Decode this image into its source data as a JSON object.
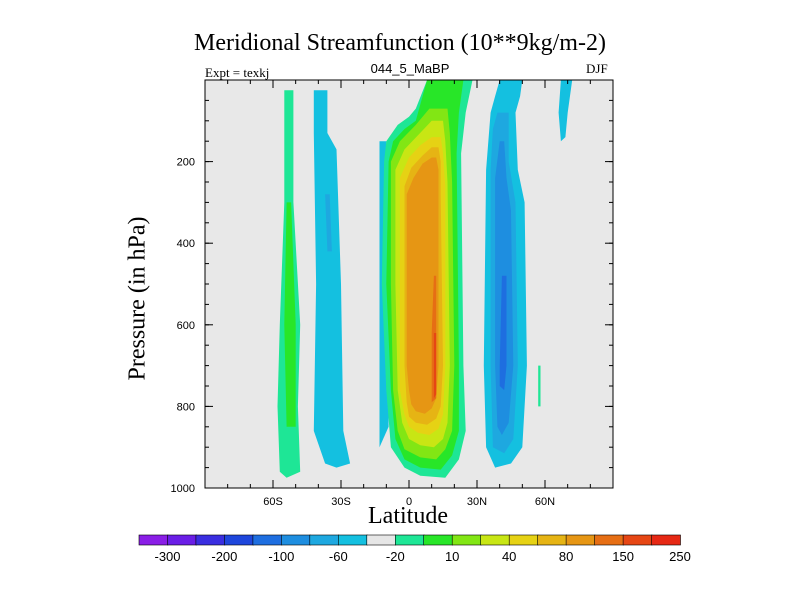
{
  "chart_data": {
    "type": "heatmap",
    "title": "Meridional Streamfunction (10**9kg/m-2)",
    "left_label": "Expt = texkj",
    "center_label": "044_5_MaBP",
    "right_label": "DJF",
    "xlabel": "Latitude",
    "ylabel": "Pressure (in hPa)",
    "xlim": [
      -90,
      90
    ],
    "ylim": [
      1000,
      0
    ],
    "x_ticks": [
      {
        "value": -60,
        "label": "60S"
      },
      {
        "value": -30,
        "label": "30S"
      },
      {
        "value": 0,
        "label": "0"
      },
      {
        "value": 30,
        "label": "30N"
      },
      {
        "value": 60,
        "label": "60N"
      }
    ],
    "y_ticks": [
      {
        "value": 200,
        "label": "200"
      },
      {
        "value": 400,
        "label": "400"
      },
      {
        "value": 600,
        "label": "600"
      },
      {
        "value": 800,
        "label": "800"
      },
      {
        "value": 1000,
        "label": "1000"
      }
    ],
    "colorbar": {
      "labels": [
        "-300",
        "-200",
        "-100",
        "-60",
        "-20",
        "10",
        "40",
        "80",
        "150",
        "250"
      ],
      "colors": [
        "#8a1ee6",
        "#6a1ee6",
        "#3a2ee0",
        "#1e46dc",
        "#1e6ee0",
        "#1e8ee0",
        "#1ea8e0",
        "#14c0e0",
        "#e6e6e6",
        "#1ee696",
        "#28e628",
        "#82e614",
        "#c8e614",
        "#e6d214",
        "#e6b414",
        "#e69614",
        "#e66e14",
        "#e64614",
        "#e62814"
      ]
    },
    "contours": [
      {
        "name": "band-60S-positive",
        "level": "10",
        "color": "#1ee696",
        "points": [
          [
            -55,
            25
          ],
          [
            -51,
            25
          ],
          [
            -51,
            300
          ],
          [
            -48,
            600
          ],
          [
            -49,
            800
          ],
          [
            -48,
            960
          ],
          [
            -54,
            975
          ],
          [
            -57,
            960
          ],
          [
            -58,
            800
          ],
          [
            -57,
            600
          ],
          [
            -55,
            300
          ]
        ]
      },
      {
        "name": "band-60S-core",
        "level": "40",
        "color": "#28e628",
        "points": [
          [
            -54,
            300
          ],
          [
            -52,
            300
          ],
          [
            -50,
            600
          ],
          [
            -50,
            850
          ],
          [
            -54,
            850
          ],
          [
            -55,
            600
          ]
        ]
      },
      {
        "name": "band-45S-negative",
        "level": "-20",
        "color": "#14c0e0",
        "points": [
          [
            -42,
            25
          ],
          [
            -36,
            25
          ],
          [
            -36,
            130
          ],
          [
            -32,
            170
          ],
          [
            -30,
            500
          ],
          [
            -29,
            860
          ],
          [
            -26,
            940
          ],
          [
            -32,
            950
          ],
          [
            -37,
            940
          ],
          [
            -42,
            860
          ],
          [
            -41,
            500
          ],
          [
            -42,
            130
          ]
        ]
      },
      {
        "name": "band-45S-core",
        "level": "-60",
        "color": "#1ea8e0",
        "points": [
          [
            -37,
            280
          ],
          [
            -35,
            280
          ],
          [
            -34,
            420
          ],
          [
            -36,
            420
          ]
        ]
      },
      {
        "name": "band-20S-negative",
        "level": "-20",
        "color": "#14c0e0",
        "points": [
          [
            -13,
            150
          ],
          [
            -10,
            150
          ],
          [
            -9,
            850
          ],
          [
            -13,
            900
          ]
        ]
      },
      {
        "name": "tropic-10",
        "level": "10",
        "color": "#1ee696",
        "points": [
          [
            8,
            0
          ],
          [
            28,
            0
          ],
          [
            25,
            80
          ],
          [
            23,
            180
          ],
          [
            24,
            700
          ],
          [
            25,
            860
          ],
          [
            22,
            930
          ],
          [
            16,
            975
          ],
          [
            5,
            970
          ],
          [
            -2,
            950
          ],
          [
            -8,
            900
          ],
          [
            -10,
            760
          ],
          [
            -12,
            500
          ],
          [
            -11,
            200
          ],
          [
            -10,
            150
          ],
          [
            -5,
            110
          ],
          [
            0,
            90
          ],
          [
            3,
            70
          ]
        ]
      },
      {
        "name": "tropic-40",
        "level": "40",
        "color": "#28e628",
        "points": [
          [
            8,
            0
          ],
          [
            24,
            0
          ],
          [
            22,
            80
          ],
          [
            21,
            180
          ],
          [
            22,
            700
          ],
          [
            22,
            860
          ],
          [
            19,
            920
          ],
          [
            14,
            955
          ],
          [
            5,
            950
          ],
          [
            -2,
            930
          ],
          [
            -6,
            880
          ],
          [
            -8,
            760
          ],
          [
            -10,
            500
          ],
          [
            -9,
            200
          ],
          [
            -7,
            150
          ],
          [
            -2,
            120
          ],
          [
            3,
            100
          ]
        ]
      },
      {
        "name": "tropic-80",
        "level": "80",
        "color": "#82e614",
        "points": [
          [
            9,
            70
          ],
          [
            17,
            70
          ],
          [
            18,
            130
          ],
          [
            19,
            250
          ],
          [
            20,
            700
          ],
          [
            19,
            860
          ],
          [
            16,
            905
          ],
          [
            12,
            930
          ],
          [
            5,
            925
          ],
          [
            -2,
            905
          ],
          [
            -5,
            860
          ],
          [
            -7,
            760
          ],
          [
            -8,
            500
          ],
          [
            -8,
            200
          ],
          [
            -4,
            150
          ],
          [
            3,
            110
          ]
        ]
      },
      {
        "name": "tropic-120",
        "level": "120",
        "color": "#c8e614",
        "points": [
          [
            10,
            100
          ],
          [
            15,
            100
          ],
          [
            16,
            150
          ],
          [
            17,
            250
          ],
          [
            18,
            700
          ],
          [
            17,
            840
          ],
          [
            15,
            880
          ],
          [
            11,
            900
          ],
          [
            5,
            895
          ],
          [
            0,
            880
          ],
          [
            -3,
            840
          ],
          [
            -5,
            760
          ],
          [
            -6,
            500
          ],
          [
            -6,
            220
          ],
          [
            -2,
            170
          ],
          [
            4,
            135
          ]
        ]
      },
      {
        "name": "tropic-150",
        "level": "150",
        "color": "#e6d214",
        "points": [
          [
            10,
            140
          ],
          [
            14,
            140
          ],
          [
            15,
            180
          ],
          [
            16,
            260
          ],
          [
            16,
            700
          ],
          [
            15,
            820
          ],
          [
            13,
            855
          ],
          [
            9,
            870
          ],
          [
            4,
            865
          ],
          [
            0,
            850
          ],
          [
            -2,
            820
          ],
          [
            -4,
            760
          ],
          [
            -4,
            500
          ],
          [
            -4,
            240
          ],
          [
            0,
            190
          ],
          [
            5,
            160
          ]
        ]
      },
      {
        "name": "tropic-200",
        "level": "200",
        "color": "#e6b414",
        "points": [
          [
            10,
            165
          ],
          [
            13,
            165
          ],
          [
            14,
            200
          ],
          [
            14,
            280
          ],
          [
            15,
            700
          ],
          [
            14,
            800
          ],
          [
            12,
            830
          ],
          [
            8,
            845
          ],
          [
            3,
            840
          ],
          [
            0,
            825
          ],
          [
            -1,
            790
          ],
          [
            -2,
            700
          ],
          [
            -2,
            500
          ],
          [
            -2,
            260
          ],
          [
            1,
            215
          ],
          [
            6,
            185
          ]
        ]
      },
      {
        "name": "tropic-250",
        "level": "250",
        "color": "#e69614",
        "points": [
          [
            10,
            190
          ],
          [
            12,
            190
          ],
          [
            13,
            220
          ],
          [
            13,
            300
          ],
          [
            13,
            700
          ],
          [
            12,
            780
          ],
          [
            10,
            805
          ],
          [
            7,
            818
          ],
          [
            3,
            812
          ],
          [
            1,
            795
          ],
          [
            0,
            760
          ],
          [
            -1,
            700
          ],
          [
            -1,
            500
          ],
          [
            -1,
            280
          ],
          [
            2,
            240
          ],
          [
            6,
            205
          ]
        ]
      },
      {
        "name": "tropic-300",
        "level": "300",
        "color": "#e66e14",
        "points": [
          [
            11,
            480
          ],
          [
            12,
            480
          ],
          [
            12,
            620
          ],
          [
            12,
            780
          ],
          [
            10,
            790
          ],
          [
            10,
            620
          ]
        ]
      },
      {
        "name": "tropic-350",
        "level": "350",
        "color": "#e64614",
        "points": [
          [
            11,
            620
          ],
          [
            12,
            620
          ],
          [
            12,
            770
          ],
          [
            11,
            780
          ]
        ]
      },
      {
        "name": "band-40N-negative",
        "level": "-20",
        "color": "#14c0e0",
        "points": [
          [
            40,
            0
          ],
          [
            50,
            0
          ],
          [
            49,
            40
          ],
          [
            47,
            80
          ],
          [
            48,
            220
          ],
          [
            51,
            300
          ],
          [
            52,
            700
          ],
          [
            50,
            900
          ],
          [
            45,
            940
          ],
          [
            38,
            950
          ],
          [
            34,
            900
          ],
          [
            33,
            700
          ],
          [
            34,
            220
          ],
          [
            36,
            80
          ],
          [
            38,
            40
          ]
        ]
      },
      {
        "name": "band-40N-60",
        "level": "-60",
        "color": "#1ea8e0",
        "points": [
          [
            39,
            80
          ],
          [
            44,
            80
          ],
          [
            44,
            200
          ],
          [
            47,
            300
          ],
          [
            48,
            700
          ],
          [
            46,
            880
          ],
          [
            42,
            915
          ],
          [
            37,
            900
          ],
          [
            36,
            700
          ],
          [
            36,
            220
          ],
          [
            37,
            120
          ]
        ]
      },
      {
        "name": "band-40N-100",
        "level": "-100",
        "color": "#1e8ee0",
        "points": [
          [
            40,
            150
          ],
          [
            42,
            150
          ],
          [
            43,
            240
          ],
          [
            45,
            320
          ],
          [
            46,
            700
          ],
          [
            44,
            840
          ],
          [
            41,
            870
          ],
          [
            39,
            850
          ],
          [
            38,
            700
          ],
          [
            38,
            240
          ]
        ]
      },
      {
        "name": "band-40N-core",
        "level": "-150",
        "color": "#1e6ee0",
        "points": [
          [
            41,
            480
          ],
          [
            43,
            480
          ],
          [
            43,
            700
          ],
          [
            42,
            760
          ],
          [
            40,
            750
          ],
          [
            40,
            700
          ]
        ]
      },
      {
        "name": "polar-north-negative",
        "level": "-20",
        "color": "#14c0e0",
        "points": [
          [
            67,
            0
          ],
          [
            72,
            0
          ],
          [
            70,
            80
          ],
          [
            69,
            140
          ],
          [
            67,
            150
          ],
          [
            66,
            80
          ]
        ]
      },
      {
        "name": "north-60-speck",
        "level": "10",
        "color": "#1ee696",
        "points": [
          [
            57,
            700
          ],
          [
            58,
            700
          ],
          [
            58,
            800
          ],
          [
            57,
            800
          ]
        ]
      }
    ]
  }
}
